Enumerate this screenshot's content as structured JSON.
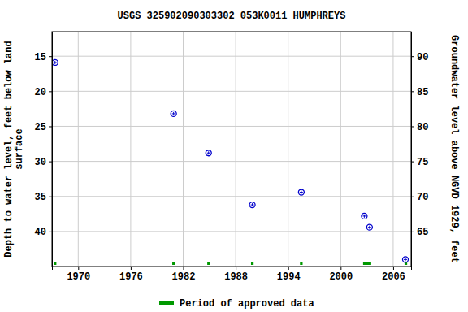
{
  "chart_data": {
    "type": "scatter",
    "title": "USGS 325902090303302 053K0011  HUMPHREYS",
    "ylabel": [
      "Depth to water level, feet below land",
      "surface"
    ],
    "y2label": "Groundwater level above NGVD 1929, feet",
    "x": [
      1967.35,
      1980.9,
      1984.9,
      1989.9,
      1995.5,
      2002.7,
      2003.3,
      2007.4
    ],
    "values": [
      15.9,
      23.2,
      28.8,
      36.2,
      34.4,
      37.8,
      39.4,
      44.0
    ],
    "color": "#0000cc",
    "marker": "circle",
    "xlim": [
      1967.0,
      2008.05
    ],
    "xticks": [
      1970,
      1976,
      1982,
      1988,
      1994,
      2000,
      2006
    ],
    "ylim": [
      11.5,
      45.0
    ],
    "yticks": [
      15,
      20,
      25,
      30,
      35,
      40
    ],
    "y2lim": [
      93.5,
      60.0
    ],
    "y2ticks": [
      65,
      70,
      75,
      80,
      85,
      90
    ],
    "grid": true,
    "approved_periods": {
      "name": "Period of approved data",
      "color": "#009900",
      "start": [
        1967.2,
        1980.75,
        1984.75,
        1989.75,
        1995.35,
        2002.56,
        2007.3
      ],
      "end": [
        1967.5,
        1981.05,
        1985.05,
        1990.05,
        1995.65,
        2003.49,
        2007.6
      ]
    },
    "legend": "bottom"
  }
}
